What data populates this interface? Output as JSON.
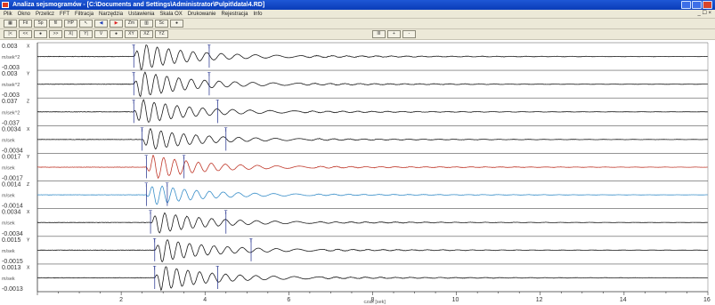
{
  "window": {
    "title": "Analiza sejsmogramów - [C:\\Documents and Settings\\Administrator\\Pulpit\\data\\4.RD]"
  },
  "menu": [
    {
      "label": "Plik"
    },
    {
      "label": "Okno"
    },
    {
      "label": "Przelicz"
    },
    {
      "label": "FFT"
    },
    {
      "label": "Filtracja"
    },
    {
      "label": "Narzędzia"
    },
    {
      "label": "Ustawienia"
    },
    {
      "label": "Skala OX"
    },
    {
      "label": "Drukowanie"
    },
    {
      "label": "Rejestracja"
    },
    {
      "label": "Info"
    }
  ],
  "mdi_controls": "_ ☐ ×",
  "toolbar1": [
    {
      "icon": "fft-icon",
      "glyph": "▦"
    },
    {
      "icon": "fit-icon",
      "glyph": "Fit"
    },
    {
      "icon": "spectrum-icon",
      "glyph": "Sp"
    },
    {
      "icon": "filter-icon",
      "glyph": "fil"
    },
    {
      "icon": "hp-icon",
      "glyph": "HP"
    },
    {
      "icon": "cursor-icon",
      "glyph": "↖"
    },
    {
      "icon": "arrow-left-icon",
      "glyph": "◀",
      "color": "blue"
    },
    {
      "icon": "arrow-right-icon",
      "glyph": "▶",
      "color": "red"
    },
    {
      "icon": "zoom-icon",
      "glyph": "Zm"
    },
    {
      "icon": "chart-icon",
      "glyph": "▥"
    },
    {
      "icon": "scale-icon",
      "glyph": "Sc"
    },
    {
      "icon": "record-icon",
      "glyph": "●"
    }
  ],
  "toolbar2": [
    {
      "icon": "first-icon",
      "glyph": "|<"
    },
    {
      "icon": "prev-icon",
      "glyph": "<<"
    },
    {
      "icon": "dot-icon",
      "glyph": "●"
    },
    {
      "icon": "next-icon",
      "glyph": ">>"
    },
    {
      "icon": "x-icon",
      "glyph": "X|"
    },
    {
      "icon": "y-icon",
      "glyph": "Y|"
    },
    {
      "icon": "down-icon",
      "glyph": "V"
    },
    {
      "icon": "play-icon",
      "glyph": "●"
    },
    {
      "icon": "xy-icon",
      "glyph": "XY"
    },
    {
      "icon": "xz-icon",
      "glyph": "XZ"
    },
    {
      "icon": "yz-icon",
      "glyph": "YZ"
    }
  ],
  "toolbar2_right": [
    {
      "icon": "zoom-out-icon",
      "glyph": "III"
    },
    {
      "icon": "zoom-in-icon",
      "glyph": "+"
    },
    {
      "icon": "reset-icon",
      "glyph": "-"
    }
  ],
  "chart_data": {
    "type": "line",
    "xlabel": "czas [sek]",
    "xlim": [
      0,
      16
    ],
    "x_ticks": [
      2,
      4,
      6,
      8,
      10,
      12,
      14,
      16
    ],
    "x_tick_labels": [
      "2",
      "4",
      "6",
      "8",
      "10",
      "12",
      "14",
      "16"
    ],
    "channels": [
      {
        "label": "X",
        "unit": "m/sek^2",
        "ymax": "0.003",
        "ymin": "-0.003",
        "color": "#1a1a1a",
        "onset": 2.3,
        "amplitude": 0.9,
        "marker_t": [
          2.3,
          4.1
        ]
      },
      {
        "label": "Y",
        "unit": "m/sek^2",
        "ymax": "0.003",
        "ymin": "-0.003",
        "color": "#1a1a1a",
        "onset": 2.3,
        "amplitude": 0.9,
        "marker_t": [
          2.3,
          4.1
        ]
      },
      {
        "label": "Z",
        "unit": "m/sek^2",
        "ymax": "0.037",
        "ymin": "-0.037",
        "color": "#1a1a1a",
        "onset": 2.3,
        "amplitude": 0.85,
        "marker_t": [
          2.3,
          4.3
        ]
      },
      {
        "label": "X",
        "unit": "m/sek",
        "ymax": "0.0034",
        "ymin": "-0.0034",
        "color": "#1a1a1a",
        "onset": 2.5,
        "amplitude": 0.75,
        "marker_t": [
          2.5,
          4.5
        ]
      },
      {
        "label": "Y",
        "unit": "m/sek",
        "ymax": "0.0017",
        "ymin": "-0.0017",
        "color": "#c0392b",
        "onset": 2.6,
        "amplitude": 0.8,
        "marker_t": [
          2.6,
          3.5
        ]
      },
      {
        "label": "Z",
        "unit": "m/sek",
        "ymax": "0.0014",
        "ymin": "-0.0014",
        "color": "#3a8fc9",
        "onset": 2.6,
        "amplitude": 0.7,
        "marker_t": [
          2.6,
          3.1
        ]
      },
      {
        "label": "X",
        "unit": "m/sek",
        "ymax": "0.0034",
        "ymin": "-0.0034",
        "color": "#1a1a1a",
        "onset": 2.7,
        "amplitude": 0.75,
        "marker_t": [
          2.7,
          4.5
        ]
      },
      {
        "label": "Y",
        "unit": "m/sek",
        "ymax": "0.0015",
        "ymin": "-0.0015",
        "color": "#1a1a1a",
        "onset": 2.8,
        "amplitude": 0.8,
        "marker_t": [
          2.8,
          5.1
        ]
      },
      {
        "label": "X",
        "unit": "m/sek",
        "ymax": "0.0013",
        "ymin": "-0.0013",
        "color": "#1a1a1a",
        "onset": 2.8,
        "amplitude": 0.85,
        "marker_t": [
          2.8,
          4.3
        ]
      }
    ]
  }
}
